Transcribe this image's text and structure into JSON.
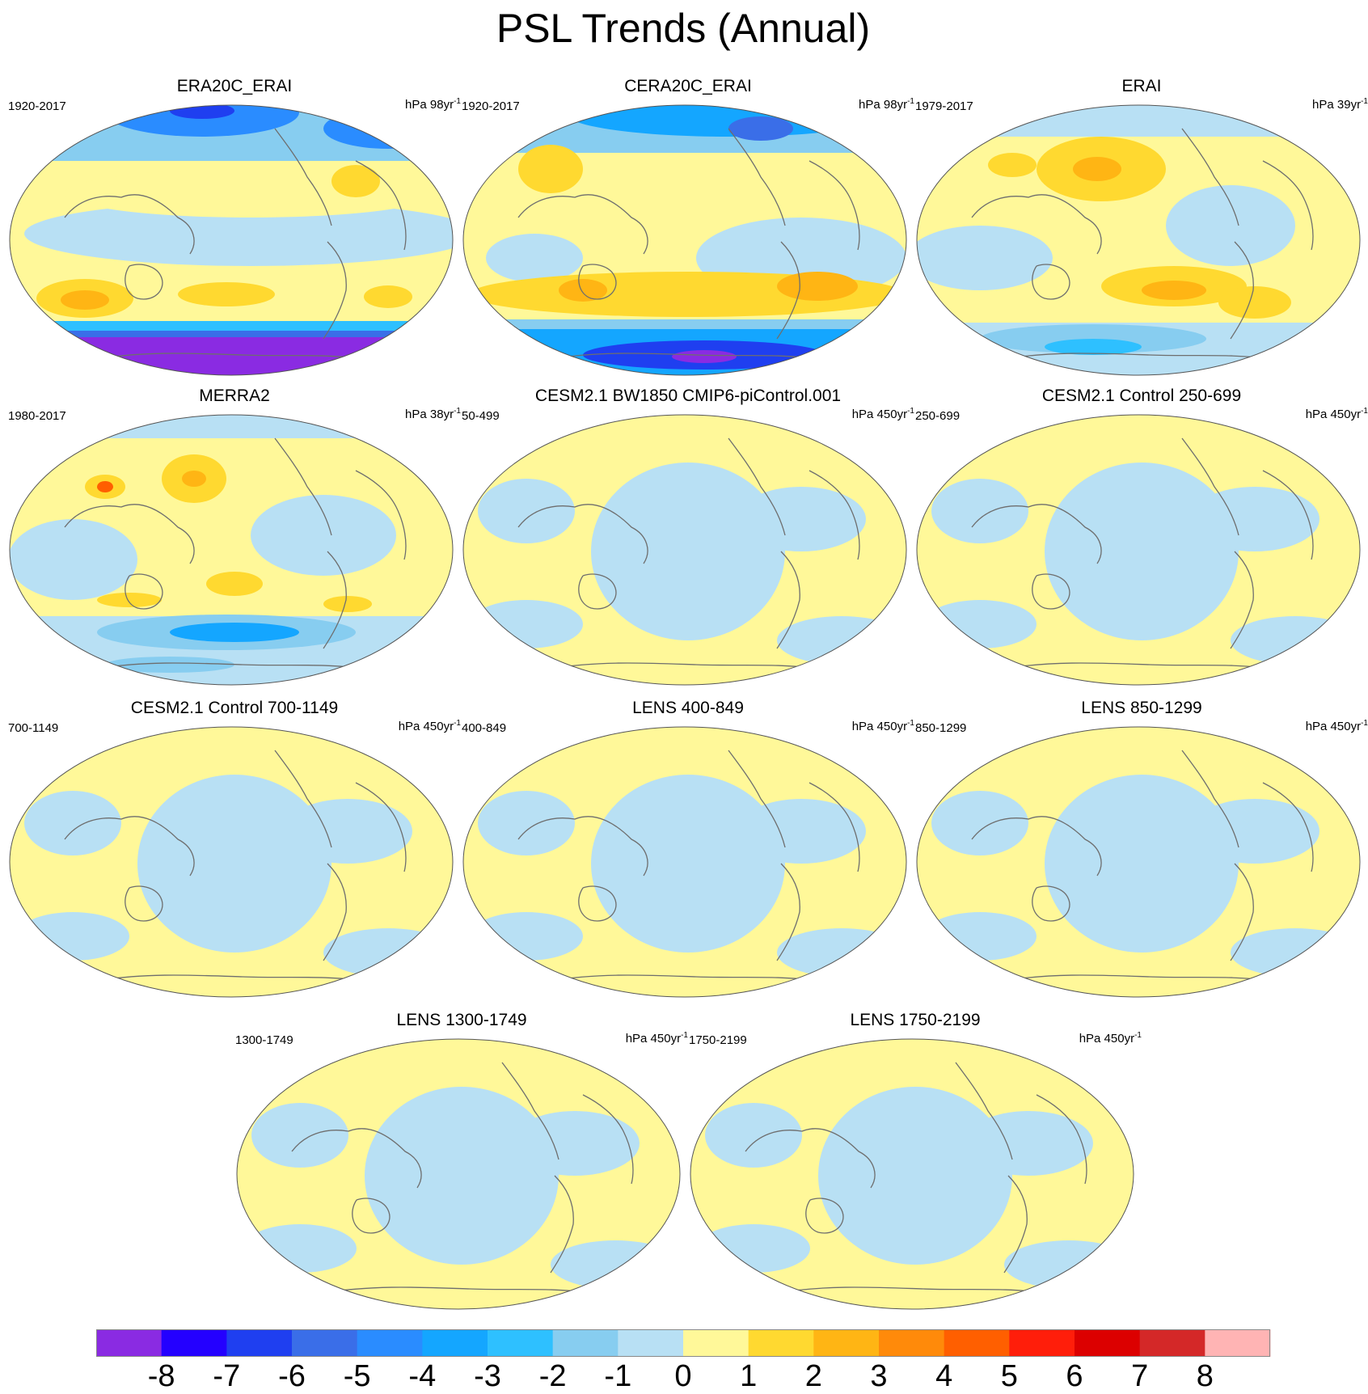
{
  "title": "PSL Trends (Annual)",
  "panels": [
    {
      "title": "ERA20C_ERAI",
      "period": "1920-2017",
      "units_prefix": "hPa 98yr",
      "units_sup": "-1",
      "style": "era20c"
    },
    {
      "title": "CERA20C_ERAI",
      "period": "1920-2017",
      "units_prefix": "hPa 98yr",
      "units_sup": "-1",
      "style": "cera20c"
    },
    {
      "title": "ERAI",
      "period": "1979-2017",
      "units_prefix": "hPa 39yr",
      "units_sup": "-1",
      "style": "erai"
    },
    {
      "title": "MERRA2",
      "period": "1980-2017",
      "units_prefix": "hPa 38yr",
      "units_sup": "-1",
      "style": "merra2"
    },
    {
      "title": "CESM2.1 BW1850 CMIP6-piControl.001",
      "period": "50-499",
      "units_prefix": "hPa 450yr",
      "units_sup": "-1",
      "style": "model"
    },
    {
      "title": "CESM2.1 Control 250-699",
      "period": "250-699",
      "units_prefix": "hPa 450yr",
      "units_sup": "-1",
      "style": "model"
    },
    {
      "title": "CESM2.1 Control 700-1149",
      "period": "700-1149",
      "units_prefix": "hPa 450yr",
      "units_sup": "-1",
      "style": "model"
    },
    {
      "title": "LENS 400-849",
      "period": "400-849",
      "units_prefix": "hPa 450yr",
      "units_sup": "-1",
      "style": "model"
    },
    {
      "title": "LENS 850-1299",
      "period": "850-1299",
      "units_prefix": "hPa 450yr",
      "units_sup": "-1",
      "style": "model"
    },
    {
      "title": "LENS 1300-1749",
      "period": "1300-1749",
      "units_prefix": "hPa 450yr",
      "units_sup": "-1",
      "style": "model"
    },
    {
      "title": "LENS 1750-2199",
      "period": "1750-2199",
      "units_prefix": "hPa 450yr",
      "units_sup": "-1",
      "style": "model"
    }
  ],
  "colorbar": {
    "colors": [
      "#8a2be2",
      "#2400ff",
      "#1f3ff0",
      "#3a6ee8",
      "#2a8cff",
      "#14a6ff",
      "#2ec0ff",
      "#87cdf0",
      "#b8e0f4",
      "#fff899",
      "#ffd930",
      "#ffb514",
      "#ff8a0a",
      "#ff5f00",
      "#ff1e0a",
      "#dc0000",
      "#d42828",
      "#ffb4b4"
    ],
    "labels": [
      "-8",
      "-7",
      "-6",
      "-5",
      "-4",
      "-3",
      "-2",
      "-1",
      "0",
      "1",
      "2",
      "3",
      "4",
      "5",
      "6",
      "7",
      "8"
    ]
  },
  "palette": {
    "background": "#fff899",
    "neg1": "#b8e0f4",
    "neg2": "#87cdf0",
    "neg3": "#2ec0ff",
    "neg4": "#14a6ff",
    "neg5": "#2a8cff",
    "neg6": "#3a6ee8",
    "neg7": "#1f3ff0",
    "neg8": "#8a2be2",
    "pos2": "#ffd930",
    "pos3": "#ffb514",
    "pos4": "#ff8a0a",
    "pos5": "#ff5f00",
    "coast": "#6e6e6e"
  }
}
